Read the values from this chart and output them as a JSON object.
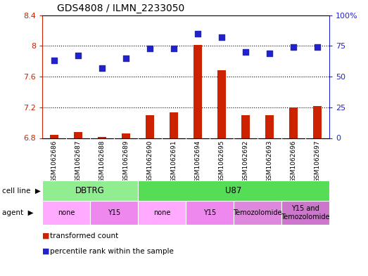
{
  "title": "GDS4808 / ILMN_2233050",
  "samples": [
    "GSM1062686",
    "GSM1062687",
    "GSM1062688",
    "GSM1062689",
    "GSM1062690",
    "GSM1062691",
    "GSM1062694",
    "GSM1062695",
    "GSM1062692",
    "GSM1062693",
    "GSM1062696",
    "GSM1062697"
  ],
  "red_values": [
    6.84,
    6.88,
    6.81,
    6.86,
    7.1,
    7.13,
    8.01,
    7.68,
    7.1,
    7.1,
    7.2,
    7.22
  ],
  "blue_values": [
    63,
    67,
    57,
    65,
    73,
    73,
    85,
    82,
    70,
    69,
    74,
    74
  ],
  "ylim_left": [
    6.8,
    8.4
  ],
  "ylim_right": [
    0,
    100
  ],
  "yticks_left": [
    6.8,
    7.2,
    7.6,
    8.0,
    8.4
  ],
  "yticks_right": [
    0,
    25,
    50,
    75,
    100
  ],
  "ytick_labels_left": [
    "6.8",
    "7.2",
    "7.6",
    "8",
    "8.4"
  ],
  "ytick_labels_right": [
    "0",
    "25",
    "50",
    "75",
    "100%"
  ],
  "hlines": [
    7.2,
    7.6,
    8.0
  ],
  "cell_line_groups": [
    {
      "label": "DBTRG",
      "start": 0,
      "end": 3,
      "color": "#90EE90"
    },
    {
      "label": "U87",
      "start": 4,
      "end": 11,
      "color": "#55DD55"
    }
  ],
  "agent_groups": [
    {
      "label": "none",
      "start": 0,
      "end": 1,
      "color": "#FFAAFF"
    },
    {
      "label": "Y15",
      "start": 2,
      "end": 3,
      "color": "#EE88EE"
    },
    {
      "label": "none",
      "start": 4,
      "end": 5,
      "color": "#FFAAFF"
    },
    {
      "label": "Y15",
      "start": 6,
      "end": 7,
      "color": "#EE88EE"
    },
    {
      "label": "Temozolomide",
      "start": 8,
      "end": 9,
      "color": "#DD88DD"
    },
    {
      "label": "Y15 and\nTemozolomide",
      "start": 10,
      "end": 11,
      "color": "#CC77CC"
    }
  ],
  "bar_color": "#CC2200",
  "dot_color": "#2222CC",
  "bar_width": 0.35,
  "dot_size": 35,
  "xtick_bg_color": "#CCCCCC",
  "cell_line_label": "cell line",
  "agent_label": "agent",
  "legend1": "transformed count",
  "legend2": "percentile rank within the sample"
}
